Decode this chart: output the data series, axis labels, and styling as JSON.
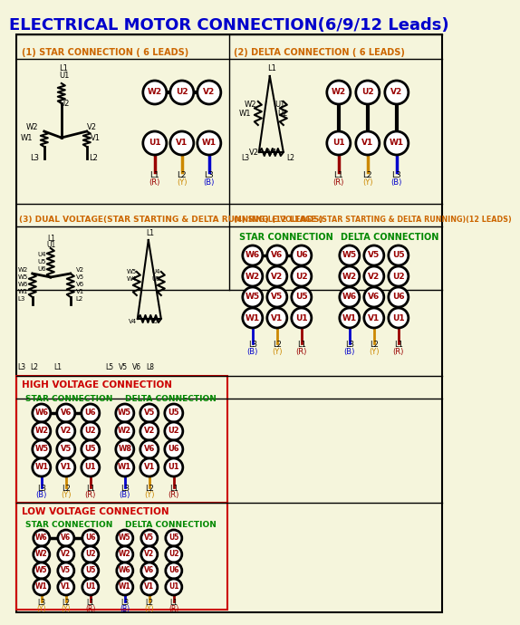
{
  "title": "ELECTRICAL MOTOR CONNECTION(6/9/12 Leads)",
  "title_color": "#0000CC",
  "title_fontsize": 13,
  "bg_color": "#F5F5DC",
  "border_color": "#000000",
  "section_label_color": "#CC6600",
  "green_label_color": "#008800",
  "section1_title": "(1) STAR CONNECTION ( 6 LEADS)",
  "section2_title": "(2) DELTA CONNECTION ( 6 LEADS)",
  "section3_title": "(3) DUAL VOLTAGE(STAR STARTING & DELTA RUNNING) (12 LEADS)",
  "section4_title": "(4) SINGLE VOLTAGE (STAR STARTING & DELTA RUNNING)(12 LEADS)",
  "high_voltage": "HIGH VOLTAGE CONNECTION",
  "low_voltage": "LOW VOLTAGE CONNECTION",
  "star_conn": "STAR CONNECTION",
  "delta_conn": "DELTA CONNECTION"
}
